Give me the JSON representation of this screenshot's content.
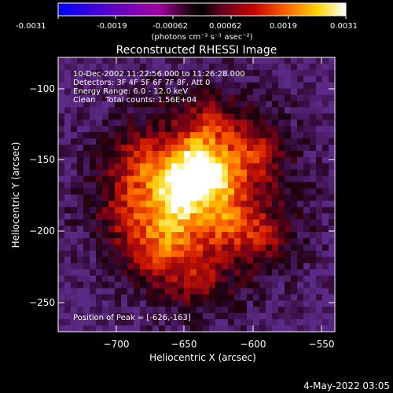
{
  "colorbar": {
    "tick_labels": [
      "-0.0031",
      "-0.0019",
      "-0.00062",
      "0.00062",
      "0.0019",
      "0.0031"
    ],
    "unit_label": "(photons cm⁻² s⁻¹ asec⁻²)",
    "colors": [
      "#0000ff",
      "#5a00c8",
      "#a000a0",
      "#2a0018",
      "#000000",
      "#5a0020",
      "#c80000",
      "#ff6a00",
      "#ffd400",
      "#ffffff"
    ]
  },
  "plot": {
    "title": "Reconstructed RHESSI Image",
    "xlabel": "Heliocentric X (arcsec)",
    "ylabel": "Heliocentric Y (arcsec)",
    "x_ticks": [
      "−700",
      "−650",
      "−600",
      "−550"
    ],
    "y_ticks": [
      "−100",
      "−150",
      "−200",
      "−250"
    ],
    "info_lines": [
      "10-Dec-2002 11:22:56.000 to 11:26:28.000",
      "Detectors: 3F 4F 5F 6F 7F 8F, Att 0",
      "Energy Range: 6.0 - 12.0 keV",
      "Clean    Total counts: 1.56E+04"
    ],
    "peak_label": "Position of Peak = [-626,-163]",
    "background_color": "#5b2a86"
  },
  "footer": {
    "timestamp": "4-May-2022 03:05"
  }
}
